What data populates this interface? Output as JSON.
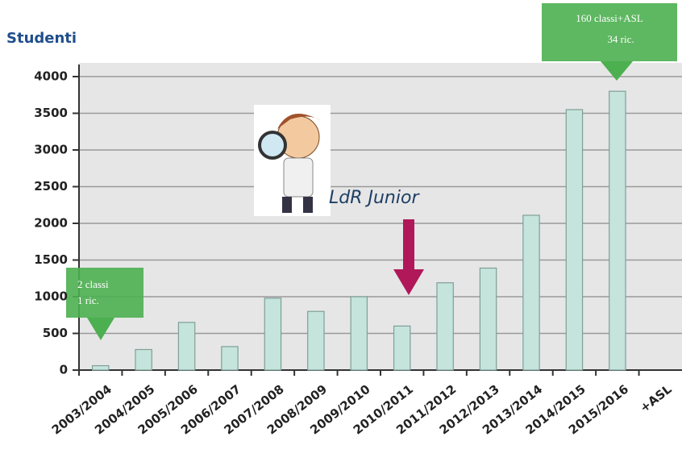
{
  "chart_data": {
    "type": "bar",
    "y_label": "Studenti",
    "categories": [
      "2003/2004",
      "2004/2005",
      "2005/2006",
      "2006/2007",
      "2007/2008",
      "2008/2009",
      "2009/2010",
      "2010/2011",
      "2011/2012",
      "2012/2013",
      "2013/2014",
      "2014/2015",
      "2015/2016",
      "+ASL"
    ],
    "values": [
      60,
      280,
      650,
      320,
      980,
      800,
      1000,
      600,
      1190,
      1390,
      2110,
      3550,
      3800,
      null
    ],
    "color": "#c4e4dc",
    "ylim": [
      0,
      4000
    ],
    "yticks": [
      0,
      500,
      1000,
      1500,
      2000,
      2500,
      3000,
      3500,
      4000
    ],
    "grid": true,
    "annotations": [
      "2 classi",
      "1 ric.",
      "LdR Junior",
      "160 classi+ASL",
      "34 ric."
    ]
  }
}
